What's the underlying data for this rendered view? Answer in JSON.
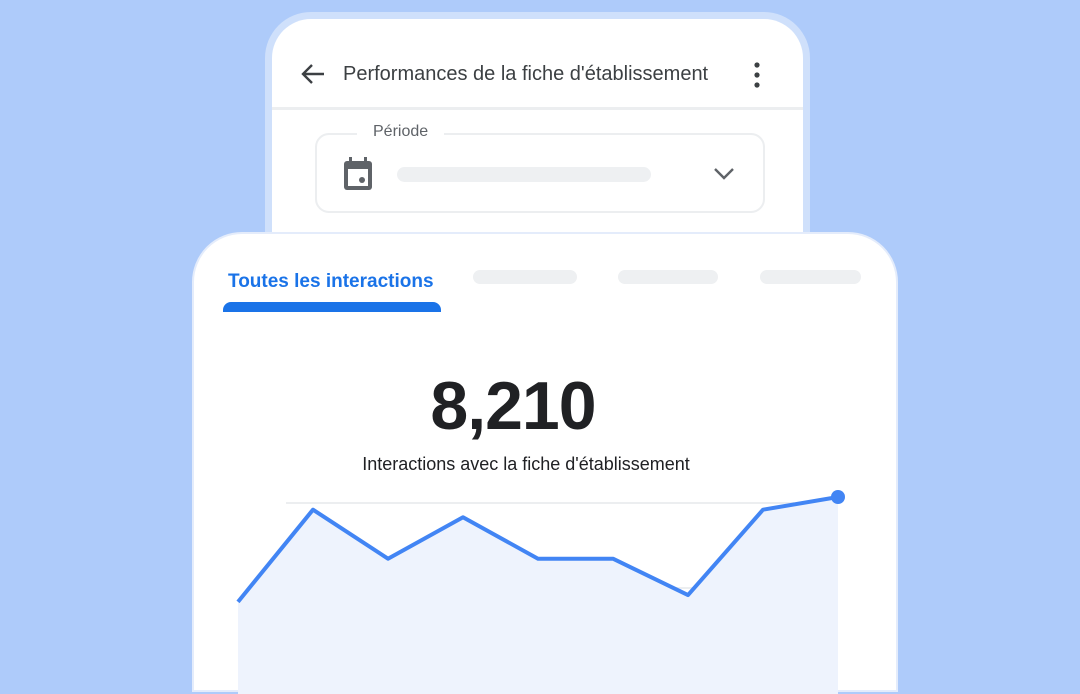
{
  "colors": {
    "background": "#aecbfa",
    "accent": "#1a73e8",
    "line": "#4285f4",
    "area": "#eef3fd"
  },
  "header": {
    "title": "Performances de la fiche d'établissement",
    "back_icon": "arrow-left-icon",
    "menu_icon": "more-vert-icon"
  },
  "period": {
    "label": "Période",
    "icon": "calendar-icon",
    "dropdown_icon": "chevron-down-icon"
  },
  "tabs": [
    {
      "label": "Toutes les interactions",
      "active": true
    }
  ],
  "summary": {
    "value": "8,210",
    "label": "Interactions avec la fiche d'établissement"
  },
  "chart_data": {
    "type": "area",
    "values": [
      83,
      192,
      134,
      183,
      134,
      134,
      91,
      192,
      207
    ],
    "ylim": [
      0,
      207
    ],
    "grid": true,
    "highlight_last_point": true
  }
}
